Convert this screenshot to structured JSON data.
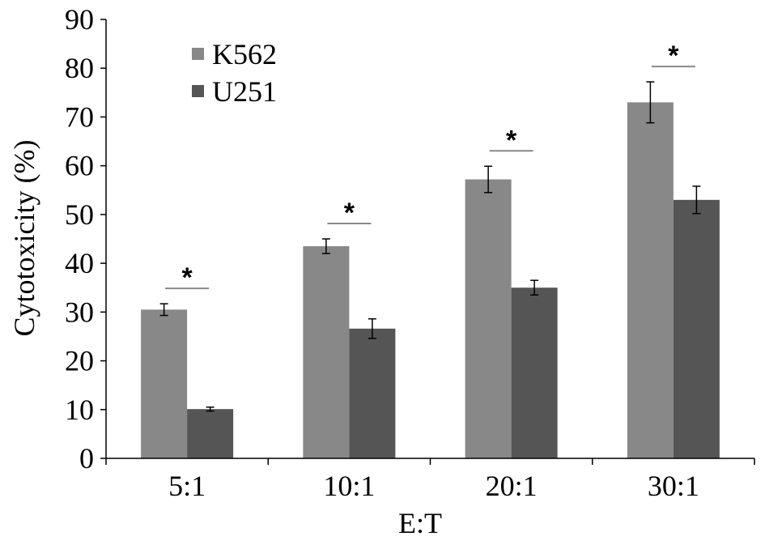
{
  "chart_data": {
    "type": "bar",
    "title": "",
    "xlabel": "E:T",
    "ylabel": "Cytotoxicity (%)",
    "ylim": [
      0,
      90
    ],
    "yticks": [
      0,
      10,
      20,
      30,
      40,
      50,
      60,
      70,
      80,
      90
    ],
    "categories": [
      "5:1",
      "10:1",
      "20:1",
      "30:1"
    ],
    "series": [
      {
        "name": "K562",
        "color": "#888888",
        "values": [
          30.5,
          43.5,
          57.2,
          73.0
        ],
        "errors": [
          1.2,
          1.5,
          2.7,
          4.2
        ]
      },
      {
        "name": "U251",
        "color": "#555555",
        "values": [
          10.1,
          26.6,
          35.0,
          53.0
        ],
        "errors": [
          0.4,
          2.0,
          1.5,
          2.8
        ]
      }
    ],
    "significance": [
      "*",
      "*",
      "*",
      "*"
    ],
    "grid": false,
    "legend": "top-left"
  }
}
